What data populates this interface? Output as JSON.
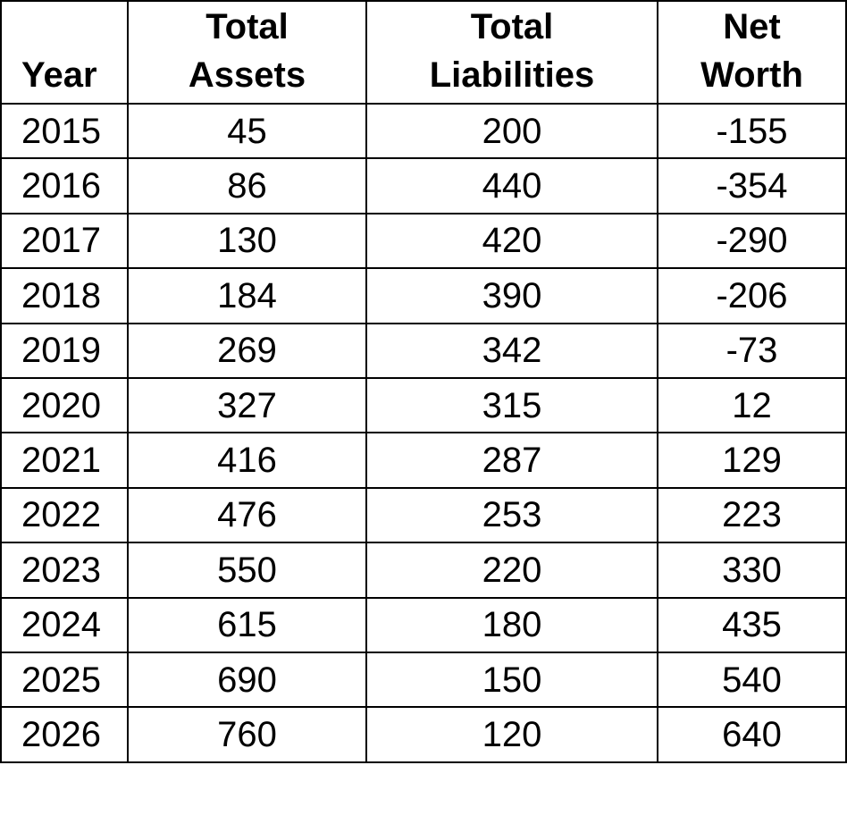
{
  "table": {
    "headers": {
      "year": "Year",
      "total_assets": [
        "Total",
        "Assets"
      ],
      "total_liabilities": [
        "Total",
        "Liabilities"
      ],
      "net_worth": [
        "Net",
        "Worth"
      ]
    },
    "rows": [
      {
        "year": "2015",
        "total_assets": "45",
        "total_liabilities": "200",
        "net_worth": "-155"
      },
      {
        "year": "2016",
        "total_assets": "86",
        "total_liabilities": "440",
        "net_worth": "-354"
      },
      {
        "year": "2017",
        "total_assets": "130",
        "total_liabilities": "420",
        "net_worth": "-290"
      },
      {
        "year": "2018",
        "total_assets": "184",
        "total_liabilities": "390",
        "net_worth": "-206"
      },
      {
        "year": "2019",
        "total_assets": "269",
        "total_liabilities": "342",
        "net_worth": "-73"
      },
      {
        "year": "2020",
        "total_assets": "327",
        "total_liabilities": "315",
        "net_worth": "12"
      },
      {
        "year": "2021",
        "total_assets": "416",
        "total_liabilities": "287",
        "net_worth": "129"
      },
      {
        "year": "2022",
        "total_assets": "476",
        "total_liabilities": "253",
        "net_worth": "223"
      },
      {
        "year": "2023",
        "total_assets": "550",
        "total_liabilities": "220",
        "net_worth": "330"
      },
      {
        "year": "2024",
        "total_assets": "615",
        "total_liabilities": "180",
        "net_worth": "435"
      },
      {
        "year": "2025",
        "total_assets": "690",
        "total_liabilities": "150",
        "net_worth": "540"
      },
      {
        "year": "2026",
        "total_assets": "760",
        "total_liabilities": "120",
        "net_worth": "640"
      }
    ]
  }
}
